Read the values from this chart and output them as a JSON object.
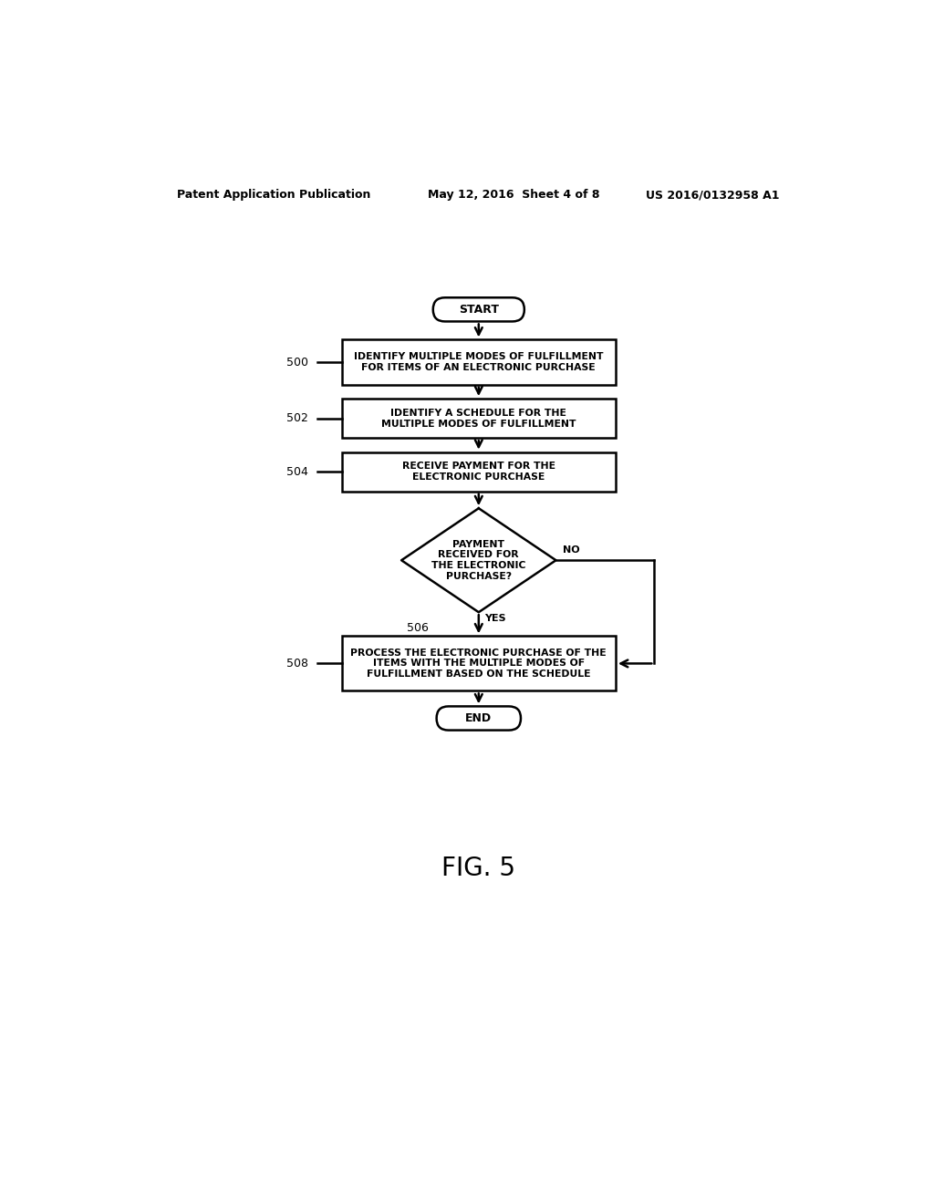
{
  "bg_color": "#ffffff",
  "header_left": "Patent Application Publication",
  "header_center": "May 12, 2016  Sheet 4 of 8",
  "header_right": "US 2016/0132958 A1",
  "fig_label": "FIG. 5",
  "start_label": "START",
  "end_label": "END",
  "box500_label": "IDENTIFY MULTIPLE MODES OF FULFILLMENT\nFOR ITEMS OF AN ELECTRONIC PURCHASE",
  "box502_label": "IDENTIFY A SCHEDULE FOR THE\nMULTIPLE MODES OF FULFILLMENT",
  "box504_label": "RECEIVE PAYMENT FOR THE\nELECTRONIC PURCHASE",
  "diamond_label": "PAYMENT\nRECEIVED FOR\nTHE ELECTRONIC\nPURCHASE?",
  "box508_label": "PROCESS THE ELECTRONIC PURCHASE OF THE\nITEMS WITH THE MULTIPLE MODES OF\nFULFILLMENT BASED ON THE SCHEDULE",
  "ref500": "500",
  "ref502": "502",
  "ref504": "504",
  "ref506": "506",
  "ref508": "508",
  "yes_label": "YES",
  "no_label": "NO",
  "font_size_header": 9,
  "font_size_box": 7.8,
  "font_size_capsule": 9,
  "font_size_ref": 9,
  "font_size_fig": 20,
  "font_size_yn": 8
}
